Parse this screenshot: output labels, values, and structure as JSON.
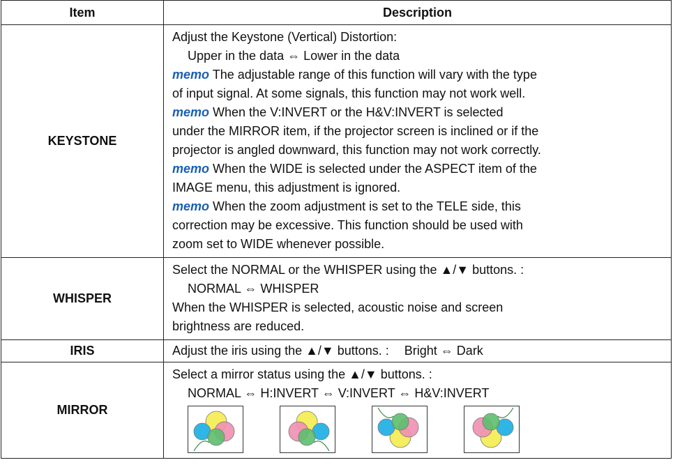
{
  "table": {
    "header": [
      "Item",
      "Description"
    ],
    "rows": [
      {
        "item": "KEYSTONE",
        "description": [
          "Adjust the Keystone (Vertical) Distortion:",
          "Upper in the data ⇔ Lower in the data",
          {
            "memo": "memo",
            "text": "The adjustable range of this function will vary with the type"
          },
          "of input signal. At some signals, this function may not work well.",
          {
            "memo": "memo",
            "text": "When the V:INVERT or the H&V:INVERT is selected"
          },
          "under the MIRROR item, if the projector screen is inclined or if the",
          "projector is angled downward, this function may not work correctly.",
          {
            "memo": "memo",
            "text": "When the WIDE is selected under the ASPECT item of the"
          },
          "IMAGE menu, this adjustment is ignored.",
          {
            "memo": "memo",
            "text": "When the zoom adjustment is set to the TELE side, this"
          },
          "correction may be excessive. This function should be used with",
          "zoom set to WIDE whenever possible."
        ]
      },
      {
        "item": "WHISPER",
        "description": [
          "Select the NORMAL or the WHISPER using the ▲/▼ buttons. :",
          "NORMAL ⇔ WHISPER",
          "When the WHISPER is selected, acoustic noise and screen",
          "brightness are reduced."
        ]
      },
      {
        "item": "IRIS",
        "description": [
          "Adjust the iris using the ▲/▼ buttons. :",
          "Bright ⇔ Dark"
        ]
      },
      {
        "item": "MIRROR",
        "description": [
          "Select a mirror status using the ▲/▼ buttons. :",
          "NORMAL ⇔ H:INVERT ⇔ V:INVERT ⇔ H&V:INVERT"
        ]
      }
    ]
  }
}
